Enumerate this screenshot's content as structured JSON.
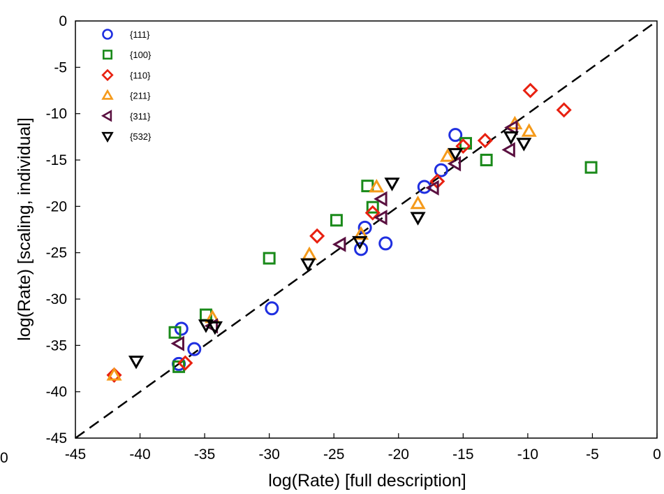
{
  "chart_data": {
    "type": "scatter",
    "xlabel": "log(Rate) [full description]",
    "ylabel": "log(Rate) [scaling, individual]",
    "xlim": [
      -45,
      0
    ],
    "ylim": [
      -45,
      0
    ],
    "xticks": [
      -45,
      -40,
      -35,
      -30,
      -25,
      -20,
      -15,
      -10,
      -5,
      0
    ],
    "yticks": [
      0,
      -5,
      -10,
      -15,
      -20,
      -25,
      -30,
      -35,
      -40,
      -45
    ],
    "grid": false,
    "legend_position": "top-left",
    "reference_line": {
      "style": "dashed",
      "color": "#000000",
      "x": [
        -45,
        0
      ],
      "y": [
        -45,
        0
      ]
    },
    "edge_fragment": "0",
    "series": [
      {
        "name": "{111}",
        "marker": "circle",
        "color": "#1f2fe0",
        "x": [
          -37.0,
          -36.8,
          -35.8,
          -29.8,
          -22.9,
          -22.6,
          -21.0,
          -18.0,
          -16.7,
          -15.6
        ],
        "y": [
          -37.0,
          -33.2,
          -35.4,
          -31.0,
          -24.6,
          -22.3,
          -24.0,
          -17.9,
          -16.1,
          -12.3
        ]
      },
      {
        "name": "{100}",
        "marker": "square",
        "color": "#1a8a1a",
        "x": [
          -37.3,
          -37.0,
          -34.9,
          -30.0,
          -24.8,
          -22.4,
          -22.0,
          -14.8,
          -13.2,
          -5.1
        ],
        "y": [
          -33.6,
          -37.3,
          -31.7,
          -25.6,
          -21.5,
          -17.8,
          -20.1,
          -13.2,
          -15.0,
          -15.8
        ]
      },
      {
        "name": "{110}",
        "marker": "diamond",
        "color": "#e82010",
        "x": [
          -42.0,
          -36.5,
          -26.3,
          -22.0,
          -17.0,
          -15.0,
          -13.3,
          -9.8,
          -7.2
        ],
        "y": [
          -38.2,
          -36.9,
          -23.2,
          -20.7,
          -17.3,
          -13.5,
          -12.9,
          -7.5,
          -9.6
        ]
      },
      {
        "name": "{211}",
        "marker": "triangle-up",
        "color": "#f59a1a",
        "x": [
          -42.0,
          -34.4,
          -26.9,
          -22.9,
          -21.7,
          -18.5,
          -16.2,
          -11.0,
          -9.9
        ],
        "y": [
          -38.2,
          -32.0,
          -25.2,
          -23.0,
          -17.9,
          -19.7,
          -14.6,
          -11.1,
          -11.9
        ]
      },
      {
        "name": "{311}",
        "marker": "triangle-left",
        "color": "#5a1040",
        "x": [
          -37.0,
          -34.4,
          -24.5,
          -21.3,
          -21.3,
          -17.3,
          -15.6,
          -11.4,
          -11.2
        ],
        "y": [
          -34.8,
          -32.9,
          -24.1,
          -21.2,
          -19.2,
          -18.0,
          -15.4,
          -13.9,
          -11.5
        ]
      },
      {
        "name": "{532}",
        "marker": "triangle-down",
        "color": "#000000",
        "x": [
          -40.3,
          -34.9,
          -34.2,
          -27.0,
          -23.0,
          -20.5,
          -18.5,
          -15.6,
          -11.3,
          -10.3
        ],
        "y": [
          -36.7,
          -32.8,
          -33.0,
          -26.2,
          -23.8,
          -17.5,
          -21.2,
          -14.3,
          -12.5,
          -13.2
        ]
      }
    ]
  }
}
